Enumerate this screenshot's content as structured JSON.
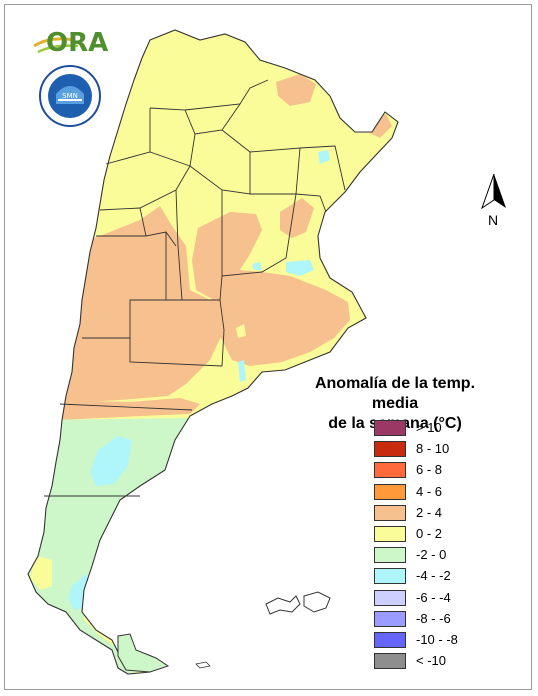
{
  "header": {
    "logo_text": "ORA",
    "seal_text": "SERVICIO METEOROLOGICO NACIONAL · ARGENTINA",
    "seal_center": "SMN"
  },
  "north_arrow": {
    "label": "N"
  },
  "legend": {
    "title_line1": "Anomalía de la temp. media",
    "title_line2": "de la semana (°C)",
    "items": [
      {
        "label": "> 10",
        "color": "#9b3864"
      },
      {
        "label": "8 - 10",
        "color": "#c82a0e"
      },
      {
        "label": "6 - 8",
        "color": "#ff6a3d"
      },
      {
        "label": "4 - 6",
        "color": "#ff9a3a"
      },
      {
        "label": "2 - 4",
        "color": "#f7c08f"
      },
      {
        "label": "0 - 2",
        "color": "#fafb99"
      },
      {
        "label": "-2 - 0",
        "color": "#cef7c9"
      },
      {
        "label": "-4 - -2",
        "color": "#aff6fb"
      },
      {
        "label": "-6 - -4",
        "color": "#cdd0ff"
      },
      {
        "label": "-8 - -6",
        "color": "#9a9cff"
      },
      {
        "label": "-10 - -8",
        "color": "#6565ff"
      },
      {
        "label": "< -10",
        "color": "#8e8e8e"
      }
    ]
  },
  "map_colors": {
    "warm_0_2": "#fafb99",
    "warm_2_4": "#f7c08f",
    "cool_m2_0": "#cef7c9",
    "cool_m4_m2": "#aff6fb",
    "border": "#333333"
  }
}
